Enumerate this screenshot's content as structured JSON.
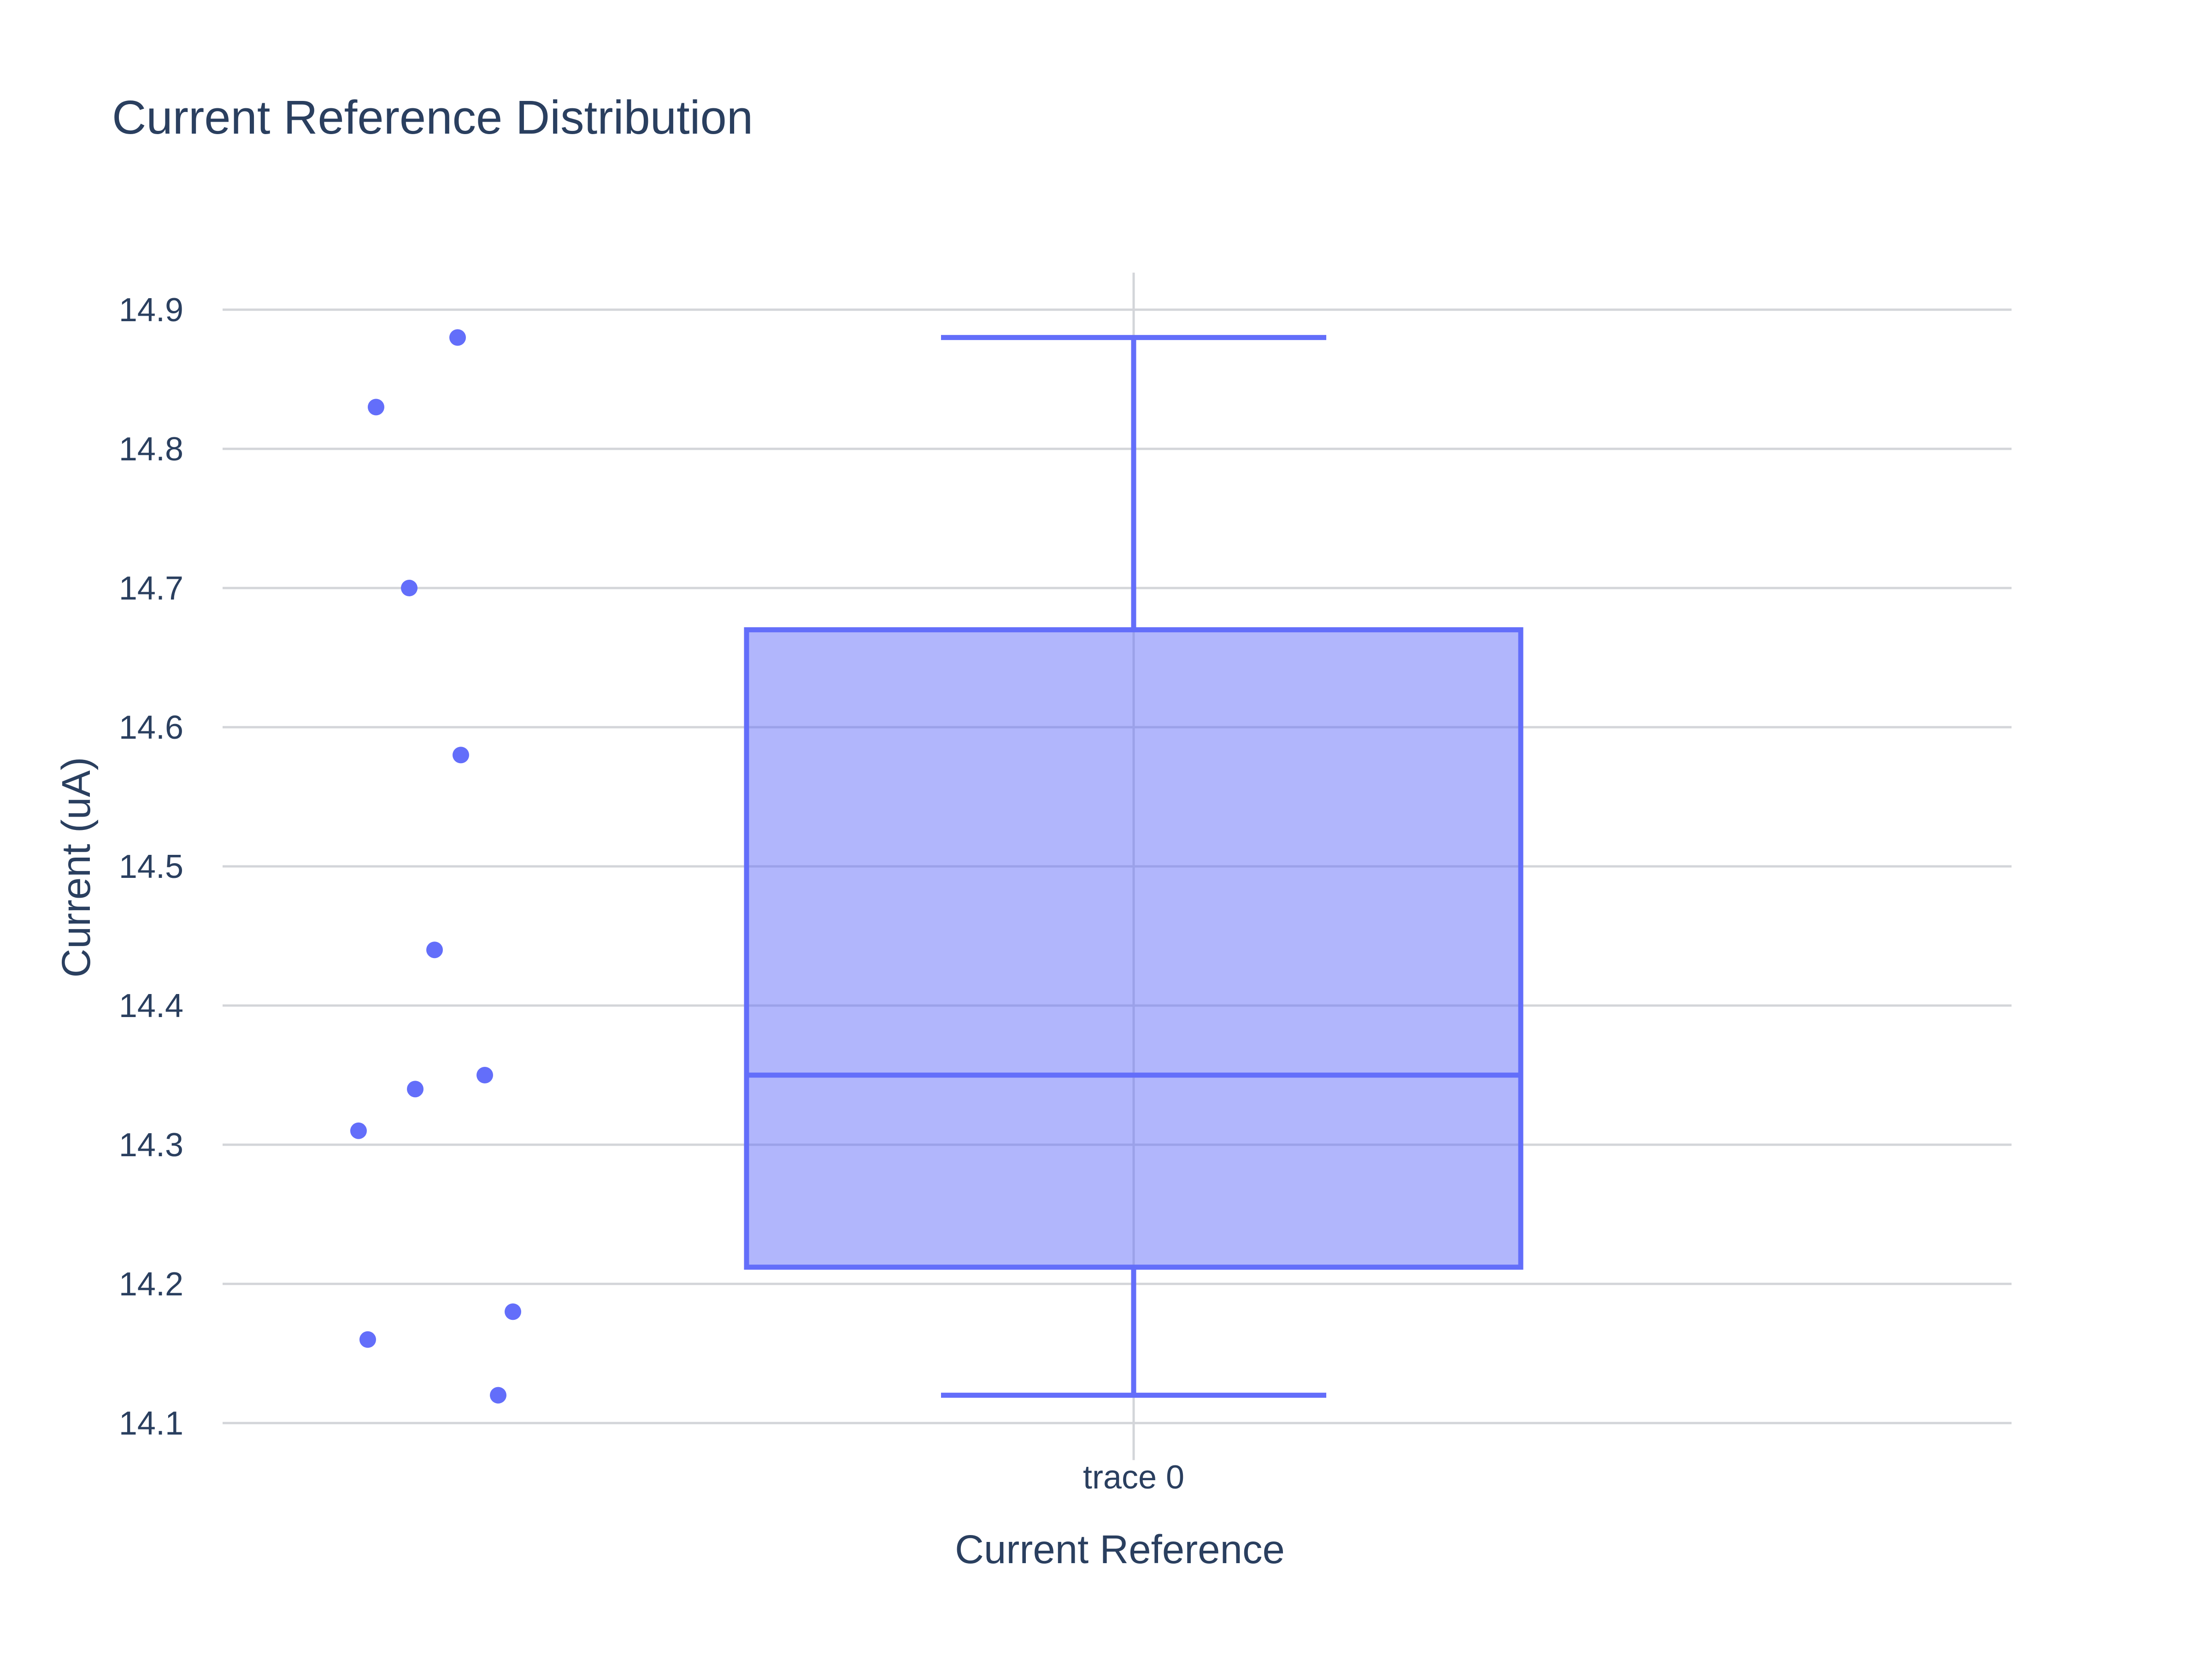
{
  "chart_data": {
    "type": "box",
    "title": "Current Reference Distribution",
    "xlabel": "Current Reference",
    "ylabel": "Current (uA)",
    "ylim": [
      14.08,
      14.92
    ],
    "yticks": [
      14.1,
      14.2,
      14.3,
      14.4,
      14.5,
      14.6,
      14.7,
      14.8,
      14.9
    ],
    "ytick_labels": [
      "14.1",
      "14.2",
      "14.3",
      "14.4",
      "14.5",
      "14.6",
      "14.7",
      "14.8",
      "14.9"
    ],
    "categories": [
      "trace 0"
    ],
    "grid": true,
    "boxpoints": "all",
    "series": [
      {
        "name": "trace 0",
        "color": "#636efa",
        "fill_color": "#aeb3f9",
        "points": [
          14.88,
          14.83,
          14.7,
          14.58,
          14.44,
          14.35,
          14.34,
          14.31,
          14.18,
          14.16,
          14.12
        ],
        "stats": {
          "min": 14.12,
          "q1": 14.212,
          "median": 14.35,
          "q3": 14.67,
          "max": 14.88
        }
      }
    ]
  }
}
